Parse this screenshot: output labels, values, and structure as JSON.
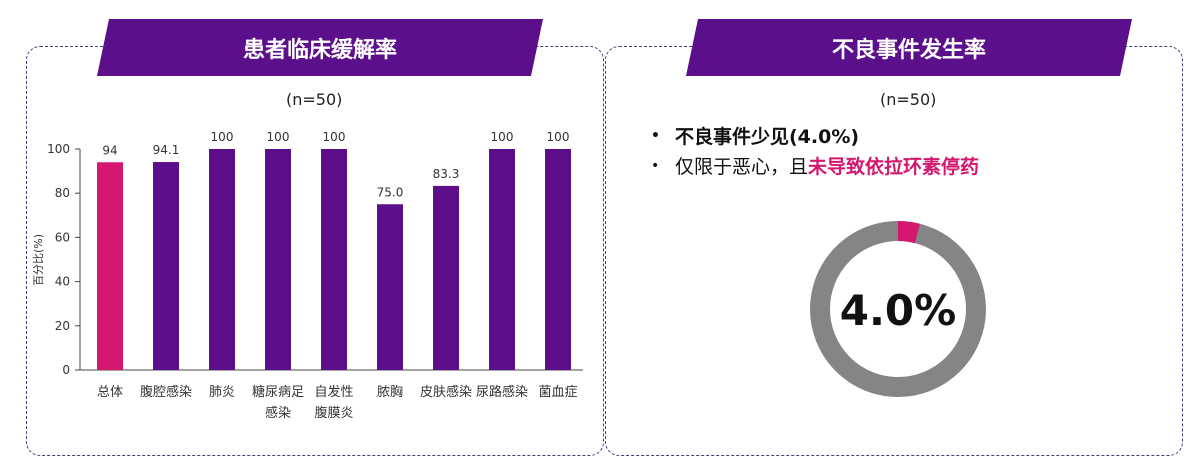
{
  "left_panel": {
    "title": "患者临床缓解率",
    "n_label": "(n=50)"
  },
  "right_panel": {
    "title": "不良事件发生率",
    "n_label": "(n=50)",
    "bullets": [
      {
        "text": "不良事件少见(4.0%)"
      },
      {
        "prefix": "仅限于恶心，且",
        "highlight": "未导致依拉环素停药"
      }
    ],
    "donut": {
      "value": 4.0,
      "center_label": "4.0%",
      "fill_color": "#d4176f",
      "rest_color": "#858585"
    }
  },
  "chart_data": {
    "type": "bar",
    "categories": [
      "总体",
      "腹腔感染",
      "肺炎",
      "糖尿病足感染",
      "自发性腹膜炎",
      "脓胸",
      "皮肤感染",
      "尿路感染",
      "菌血症"
    ],
    "category_lines": [
      [
        "总体"
      ],
      [
        "腹腔感染"
      ],
      [
        "肺炎"
      ],
      [
        "糖尿病足",
        "感染"
      ],
      [
        "自发性",
        "腹膜炎"
      ],
      [
        "脓胸"
      ],
      [
        "皮肤感染"
      ],
      [
        "尿路感染"
      ],
      [
        "菌血症"
      ]
    ],
    "values": [
      94,
      94.1,
      100,
      100,
      100,
      75.0,
      83.3,
      100,
      100
    ],
    "value_labels": [
      "94",
      "94.1",
      "100",
      "100",
      "100",
      "75.0",
      "83.3",
      "100",
      "100"
    ],
    "colors": [
      "#d4176f",
      "#5b0f8b",
      "#5b0f8b",
      "#5b0f8b",
      "#5b0f8b",
      "#5b0f8b",
      "#5b0f8b",
      "#5b0f8b",
      "#5b0f8b"
    ],
    "ylabel": "百分比(%)",
    "ylim": [
      0,
      100
    ],
    "yticks": [
      0,
      20,
      40,
      60,
      80,
      100
    ],
    "grid": false
  }
}
